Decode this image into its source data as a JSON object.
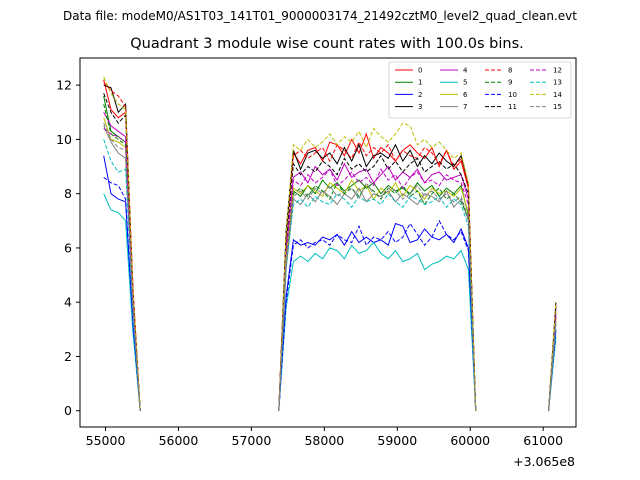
{
  "header": {
    "suptitle": "Data file: modeM0/AS1T03_141T01_9000003174_21492cztM0_level2_quad_clean.evt",
    "title": "Quadrant 3 module wise count rates with 100.0s bins."
  },
  "chart_data": {
    "type": "line",
    "title": "Quadrant 3 module wise count rates with 100.0s bins.",
    "xlabel": "",
    "ylabel": "",
    "x_offset_label": "+3.065e8",
    "xlim": [
      54650,
      61450
    ],
    "ylim": [
      -0.6,
      13.0
    ],
    "x_ticks": [
      55000,
      56000,
      57000,
      58000,
      59000,
      60000,
      61000
    ],
    "x_tick_labels": [
      "55000",
      "56000",
      "57000",
      "58000",
      "59000",
      "60000",
      "61000"
    ],
    "y_ticks": [
      0,
      2,
      4,
      6,
      8,
      10,
      12
    ],
    "y_tick_labels": [
      "0",
      "2",
      "4",
      "6",
      "8",
      "10",
      "12"
    ],
    "grid": false,
    "legend": {
      "placement": "top-right",
      "columns": 4
    },
    "x_segments": [
      [
        54975,
        55075,
        55175,
        55275,
        55375,
        55475
      ],
      [
        57375,
        57475,
        57575,
        57675,
        57775,
        57875,
        57975,
        58075,
        58175,
        58275,
        58375,
        58475,
        58575,
        58675,
        58775,
        58875,
        58975,
        59075,
        59175,
        59275,
        59375,
        59475,
        59575,
        59675,
        59775,
        59875,
        59975,
        60075
      ],
      [
        61075,
        61175
      ]
    ],
    "series": [
      {
        "name": "0",
        "color": "#ff0000",
        "dash": "solid",
        "segments": [
          [
            12.2,
            11.1,
            10.8,
            11.0,
            4.5,
            0
          ],
          [
            0,
            6.4,
            9.5,
            9.1,
            9.6,
            9.7,
            9.2,
            9.9,
            9.8,
            9.4,
            10.0,
            9.5,
            10.2,
            9.3,
            9.7,
            9.5,
            9.2,
            9.6,
            9.8,
            9.5,
            9.3,
            9.7,
            9.0,
            9.6,
            8.9,
            9.2,
            8.2,
            0
          ],
          [
            0,
            3.8
          ]
        ]
      },
      {
        "name": "1",
        "color": "#008000",
        "dash": "solid",
        "segments": [
          [
            11.6,
            10.3,
            10.1,
            9.9,
            4.0,
            0
          ],
          [
            0,
            5.3,
            8.1,
            7.9,
            8.3,
            8.0,
            8.5,
            8.2,
            8.4,
            8.1,
            8.3,
            8.5,
            8.2,
            8.4,
            8.0,
            8.3,
            8.1,
            8.2,
            8.0,
            8.4,
            8.1,
            8.3,
            7.9,
            8.2,
            8.0,
            8.3,
            7.2,
            0
          ],
          [
            0,
            3.5
          ]
        ]
      },
      {
        "name": "2",
        "color": "#0000ff",
        "dash": "solid",
        "segments": [
          [
            9.4,
            8.0,
            7.8,
            7.7,
            3.2,
            0
          ],
          [
            0,
            4.2,
            6.3,
            6.1,
            6.2,
            6.1,
            6.4,
            6.3,
            6.5,
            6.1,
            6.6,
            6.2,
            6.4,
            6.2,
            6.3,
            6.1,
            6.9,
            6.8,
            6.2,
            6.3,
            6.7,
            6.4,
            6.3,
            6.5,
            6.2,
            6.7,
            6.0,
            0
          ],
          [
            0,
            3.0
          ]
        ]
      },
      {
        "name": "3",
        "color": "#000000",
        "dash": "solid",
        "segments": [
          [
            12.0,
            11.9,
            11.0,
            11.3,
            4.4,
            0
          ],
          [
            0,
            6.6,
            9.6,
            8.9,
            9.5,
            9.6,
            9.3,
            9.5,
            9.1,
            9.7,
            9.2,
            9.8,
            9.0,
            9.4,
            9.5,
            9.3,
            9.8,
            9.2,
            9.6,
            9.0,
            9.4,
            9.1,
            9.5,
            9.2,
            9.0,
            9.4,
            8.3,
            0
          ],
          [
            0,
            4.0
          ]
        ]
      },
      {
        "name": "4",
        "color": "#bf00bf",
        "dash": "solid",
        "segments": [
          [
            11.0,
            10.5,
            10.3,
            10.1,
            4.1,
            0
          ],
          [
            0,
            5.9,
            8.6,
            8.8,
            8.4,
            9.0,
            8.7,
            8.9,
            8.5,
            9.1,
            8.6,
            8.8,
            8.9,
            8.4,
            8.7,
            9.0,
            8.5,
            8.8,
            8.6,
            8.9,
            8.4,
            8.7,
            8.8,
            8.5,
            8.6,
            8.7,
            7.8,
            0
          ],
          [
            0,
            3.6
          ]
        ]
      },
      {
        "name": "5",
        "color": "#00bfbf",
        "dash": "solid",
        "segments": [
          [
            8.0,
            7.4,
            7.3,
            7.0,
            2.9,
            0
          ],
          [
            0,
            3.8,
            5.5,
            5.7,
            5.5,
            5.8,
            5.6,
            6.0,
            5.9,
            5.6,
            6.1,
            5.8,
            5.9,
            6.2,
            5.8,
            5.6,
            5.9,
            5.5,
            5.6,
            5.8,
            5.2,
            5.4,
            5.5,
            5.7,
            5.6,
            5.9,
            5.2,
            0
          ],
          [
            0,
            2.7
          ]
        ]
      },
      {
        "name": "6",
        "color": "#bfbf00",
        "dash": "solid",
        "segments": [
          [
            10.8,
            10.0,
            9.9,
            9.7,
            4.0,
            0
          ],
          [
            0,
            5.6,
            8.2,
            8.0,
            8.3,
            8.1,
            7.9,
            8.4,
            8.2,
            8.0,
            8.5,
            8.1,
            8.3,
            7.8,
            8.2,
            8.0,
            8.4,
            7.9,
            8.3,
            8.1,
            7.8,
            8.2,
            8.0,
            8.1,
            7.9,
            8.2,
            7.3,
            0
          ],
          [
            0,
            3.4
          ]
        ]
      },
      {
        "name": "7",
        "color": "#808080",
        "dash": "solid",
        "segments": [
          [
            10.5,
            9.9,
            9.5,
            9.3,
            3.8,
            0
          ],
          [
            0,
            5.2,
            7.8,
            7.6,
            8.0,
            7.7,
            8.1,
            7.9,
            7.6,
            8.0,
            7.8,
            8.2,
            7.7,
            8.0,
            7.9,
            8.1,
            7.7,
            8.0,
            7.8,
            7.6,
            8.0,
            7.9,
            7.7,
            8.1,
            7.5,
            7.8,
            7.0,
            0
          ],
          [
            0,
            3.3
          ]
        ]
      },
      {
        "name": "8",
        "color": "#ff0000",
        "dash": "dashed",
        "segments": [
          [
            12.1,
            11.8,
            11.6,
            11.2,
            4.6,
            0
          ],
          [
            0,
            6.5,
            9.4,
            9.6,
            9.3,
            9.5,
            9.7,
            9.2,
            9.8,
            9.6,
            9.3,
            9.9,
            9.4,
            9.7,
            9.5,
            9.8,
            9.2,
            9.6,
            9.4,
            9.3,
            9.7,
            9.5,
            9.1,
            9.6,
            9.0,
            9.3,
            8.3,
            0
          ],
          [
            0,
            3.9
          ]
        ]
      },
      {
        "name": "9",
        "color": "#008000",
        "dash": "dashed",
        "segments": [
          [
            11.3,
            10.2,
            10.0,
            9.8,
            4.0,
            0
          ],
          [
            0,
            5.4,
            8.0,
            8.2,
            7.9,
            8.3,
            8.1,
            7.8,
            8.4,
            8.0,
            8.2,
            7.9,
            8.3,
            8.1,
            7.8,
            8.2,
            8.0,
            8.3,
            7.9,
            8.1,
            7.6,
            8.0,
            8.2,
            7.8,
            8.0,
            7.7,
            7.1,
            0
          ],
          [
            0,
            3.5
          ]
        ]
      },
      {
        "name": "10",
        "color": "#0000ff",
        "dash": "dashed",
        "segments": [
          [
            8.6,
            8.4,
            8.3,
            7.8,
            3.2,
            0
          ],
          [
            0,
            4.0,
            6.1,
            6.3,
            6.0,
            6.2,
            6.3,
            6.1,
            6.5,
            6.3,
            6.2,
            6.8,
            6.1,
            6.4,
            6.3,
            6.6,
            6.2,
            6.4,
            6.9,
            6.5,
            6.1,
            6.4,
            7.0,
            6.5,
            6.3,
            6.6,
            5.9,
            0
          ],
          [
            0,
            2.9
          ]
        ]
      },
      {
        "name": "11",
        "color": "#000000",
        "dash": "dashed",
        "segments": [
          [
            11.7,
            11.0,
            10.6,
            10.9,
            4.3,
            0
          ],
          [
            0,
            6.2,
            9.1,
            8.7,
            9.0,
            8.8,
            9.2,
            9.0,
            8.7,
            9.3,
            8.9,
            9.1,
            8.8,
            9.0,
            9.4,
            8.9,
            9.2,
            8.8,
            9.1,
            9.3,
            8.8,
            9.0,
            9.2,
            8.9,
            9.1,
            8.7,
            8.0,
            0
          ],
          [
            0,
            3.8
          ]
        ]
      },
      {
        "name": "12",
        "color": "#bf00bf",
        "dash": "dashed",
        "segments": [
          [
            10.4,
            10.2,
            10.1,
            9.9,
            4.0,
            0
          ],
          [
            0,
            5.8,
            8.5,
            8.3,
            8.7,
            8.4,
            8.6,
            8.9,
            8.3,
            8.5,
            8.8,
            8.4,
            8.6,
            8.3,
            8.9,
            8.5,
            8.7,
            8.2,
            8.6,
            8.8,
            8.4,
            8.5,
            8.3,
            8.7,
            8.5,
            8.4,
            7.6,
            0
          ],
          [
            0,
            3.5
          ]
        ]
      },
      {
        "name": "13",
        "color": "#00bfbf",
        "dash": "dashed",
        "segments": [
          [
            10.0,
            9.2,
            8.8,
            8.9,
            3.6,
            0
          ],
          [
            0,
            5.3,
            7.6,
            7.8,
            7.5,
            7.9,
            7.7,
            7.6,
            8.0,
            7.8,
            7.5,
            7.9,
            7.7,
            7.8,
            7.6,
            8.0,
            7.7,
            7.5,
            7.9,
            7.8,
            7.6,
            7.7,
            7.9,
            7.5,
            7.8,
            7.6,
            6.8,
            0
          ],
          [
            0,
            3.2
          ]
        ]
      },
      {
        "name": "14",
        "color": "#bfbf00",
        "dash": "dashed",
        "segments": [
          [
            12.3,
            11.7,
            11.3,
            11.1,
            4.5,
            0
          ],
          [
            0,
            6.5,
            9.8,
            9.6,
            10.0,
            9.7,
            9.9,
            10.2,
            9.8,
            10.1,
            9.9,
            10.3,
            9.7,
            10.4,
            10.1,
            9.9,
            10.2,
            10.6,
            10.5,
            9.8,
            10.0,
            9.7,
            9.9,
            9.6,
            9.3,
            9.5,
            8.4,
            0
          ],
          [
            0,
            4.0
          ]
        ]
      },
      {
        "name": "15",
        "color": "#808080",
        "dash": "dashed",
        "segments": [
          [
            10.6,
            10.0,
            9.7,
            9.6,
            3.9,
            0
          ],
          [
            0,
            5.5,
            7.9,
            8.1,
            7.8,
            8.2,
            8.0,
            8.3,
            7.9,
            8.1,
            8.2,
            7.8,
            8.4,
            8.0,
            7.9,
            8.2,
            8.1,
            7.8,
            8.0,
            8.3,
            7.9,
            8.1,
            7.8,
            8.0,
            7.7,
            7.9,
            7.1,
            0
          ],
          [
            0,
            3.3
          ]
        ]
      }
    ]
  }
}
